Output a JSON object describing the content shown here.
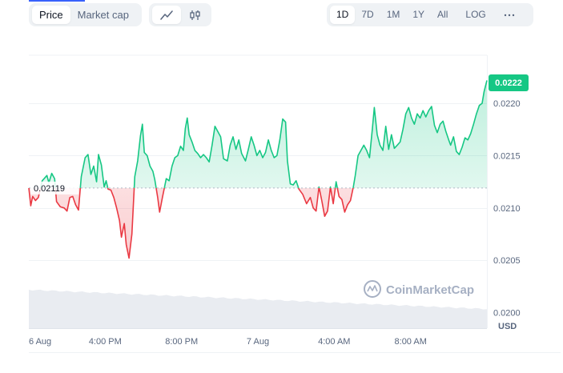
{
  "toolbar": {
    "metric_tabs": [
      {
        "label": "Price",
        "active": true
      },
      {
        "label": "Market cap",
        "active": false
      }
    ],
    "chart_type": {
      "line_icon": "line-chart-icon",
      "candle_icon": "candlestick-icon",
      "active": "line"
    },
    "ranges": [
      {
        "label": "1D",
        "active": true
      },
      {
        "label": "7D",
        "active": false
      },
      {
        "label": "1M",
        "active": false
      },
      {
        "label": "1Y",
        "active": false
      },
      {
        "label": "All",
        "active": false
      },
      {
        "label": "LOG",
        "active": false
      }
    ],
    "more_icon": "more-horizontal-icon"
  },
  "watermark": {
    "text": "CoinMarketCap",
    "icon": "coinmarketcap-logo-icon"
  },
  "colors": {
    "up": "#16c784",
    "down": "#ea3943",
    "badge": "#16c784",
    "reference_line": "#b0b8c5",
    "volume": "#e9ecf1"
  },
  "chart_data": {
    "type": "line",
    "currency_label": "USD",
    "reference_price": 0.02119,
    "reference_label": "0.02119",
    "current_price": 0.0222,
    "current_label": "0.0222",
    "ylim": [
      0.01985,
      0.02246
    ],
    "y_ticks": [
      {
        "value": 0.022,
        "label": "0.0220"
      },
      {
        "value": 0.0215,
        "label": "0.0215"
      },
      {
        "value": 0.021,
        "label": "0.0210"
      },
      {
        "value": 0.0205,
        "label": "0.0205"
      },
      {
        "value": 0.02,
        "label": "0.0200"
      }
    ],
    "x_unit": "hours since 12:00 PM 6 Aug",
    "xlim": [
      0,
      24
    ],
    "x_ticks": [
      {
        "value": 0,
        "label": "6 Aug"
      },
      {
        "value": 4,
        "label": "4:00 PM"
      },
      {
        "value": 8,
        "label": "8:00 PM"
      },
      {
        "value": 12,
        "label": "7 Aug"
      },
      {
        "value": 16,
        "label": "4:00 AM"
      },
      {
        "value": 20,
        "label": "8:00 AM"
      }
    ],
    "points": [
      [
        0.0,
        0.02119
      ],
      [
        0.1,
        0.02102
      ],
      [
        0.2,
        0.02111
      ],
      [
        0.35,
        0.02107
      ],
      [
        0.5,
        0.0211
      ],
      [
        0.7,
        0.02126
      ],
      [
        0.8,
        0.02128
      ],
      [
        0.95,
        0.02131
      ],
      [
        1.05,
        0.02124
      ],
      [
        1.2,
        0.02133
      ],
      [
        1.35,
        0.02128
      ],
      [
        1.45,
        0.02106
      ],
      [
        1.65,
        0.02101
      ],
      [
        1.85,
        0.021
      ],
      [
        2.0,
        0.02097
      ],
      [
        2.15,
        0.0211
      ],
      [
        2.3,
        0.02111
      ],
      [
        2.45,
        0.02103
      ],
      [
        2.6,
        0.02098
      ],
      [
        2.75,
        0.0213
      ],
      [
        2.95,
        0.02148
      ],
      [
        3.1,
        0.02151
      ],
      [
        3.25,
        0.02132
      ],
      [
        3.4,
        0.0214
      ],
      [
        3.55,
        0.02125
      ],
      [
        3.65,
        0.02151
      ],
      [
        3.8,
        0.02141
      ],
      [
        3.95,
        0.0212
      ],
      [
        4.05,
        0.02126
      ],
      [
        4.15,
        0.02118
      ],
      [
        4.3,
        0.02117
      ],
      [
        4.45,
        0.0211
      ],
      [
        4.6,
        0.021
      ],
      [
        4.75,
        0.02088
      ],
      [
        4.85,
        0.02072
      ],
      [
        5.0,
        0.02085
      ],
      [
        5.1,
        0.02065
      ],
      [
        5.25,
        0.02052
      ],
      [
        5.4,
        0.02075
      ],
      [
        5.55,
        0.0213
      ],
      [
        5.7,
        0.02145
      ],
      [
        5.85,
        0.02169
      ],
      [
        5.95,
        0.0218
      ],
      [
        6.05,
        0.02153
      ],
      [
        6.2,
        0.0215
      ],
      [
        6.35,
        0.0214
      ],
      [
        6.5,
        0.02135
      ],
      [
        6.6,
        0.02127
      ],
      [
        6.75,
        0.0211
      ],
      [
        6.85,
        0.02096
      ],
      [
        7.0,
        0.0211
      ],
      [
        7.2,
        0.02128
      ],
      [
        7.35,
        0.02126
      ],
      [
        7.5,
        0.0214
      ],
      [
        7.65,
        0.02148
      ],
      [
        7.8,
        0.0215
      ],
      [
        7.95,
        0.02159
      ],
      [
        8.1,
        0.02155
      ],
      [
        8.2,
        0.02176
      ],
      [
        8.3,
        0.02186
      ],
      [
        8.4,
        0.0217
      ],
      [
        8.55,
        0.02163
      ],
      [
        8.7,
        0.02155
      ],
      [
        8.85,
        0.02152
      ],
      [
        9.0,
        0.02148
      ],
      [
        9.15,
        0.02151
      ],
      [
        9.3,
        0.02148
      ],
      [
        9.45,
        0.02144
      ],
      [
        9.6,
        0.0216
      ],
      [
        9.75,
        0.02178
      ],
      [
        9.9,
        0.02173
      ],
      [
        10.05,
        0.02168
      ],
      [
        10.2,
        0.02147
      ],
      [
        10.4,
        0.02145
      ],
      [
        10.55,
        0.0216
      ],
      [
        10.7,
        0.02168
      ],
      [
        10.85,
        0.02156
      ],
      [
        11.0,
        0.02165
      ],
      [
        11.15,
        0.02152
      ],
      [
        11.35,
        0.02145
      ],
      [
        11.5,
        0.02156
      ],
      [
        11.65,
        0.02168
      ],
      [
        11.8,
        0.0216
      ],
      [
        11.95,
        0.0215
      ],
      [
        12.1,
        0.02155
      ],
      [
        12.25,
        0.02148
      ],
      [
        12.4,
        0.02153
      ],
      [
        12.55,
        0.02165
      ],
      [
        12.7,
        0.02155
      ],
      [
        12.85,
        0.02148
      ],
      [
        13.0,
        0.0215
      ],
      [
        13.15,
        0.02165
      ],
      [
        13.3,
        0.02185
      ],
      [
        13.45,
        0.02182
      ],
      [
        13.55,
        0.02145
      ],
      [
        13.7,
        0.02123
      ],
      [
        13.85,
        0.02122
      ],
      [
        14.0,
        0.02126
      ],
      [
        14.15,
        0.02118
      ],
      [
        14.35,
        0.02113
      ],
      [
        14.55,
        0.02104
      ],
      [
        14.75,
        0.0211
      ],
      [
        14.9,
        0.021
      ],
      [
        15.05,
        0.02097
      ],
      [
        15.2,
        0.0212
      ],
      [
        15.35,
        0.02107
      ],
      [
        15.5,
        0.02092
      ],
      [
        15.65,
        0.02097
      ],
      [
        15.8,
        0.0212
      ],
      [
        15.95,
        0.02104
      ],
      [
        16.1,
        0.02125
      ],
      [
        16.25,
        0.02111
      ],
      [
        16.4,
        0.02108
      ],
      [
        16.55,
        0.02096
      ],
      [
        16.7,
        0.02103
      ],
      [
        16.85,
        0.02107
      ],
      [
        17.0,
        0.0212
      ],
      [
        17.1,
        0.02131
      ],
      [
        17.25,
        0.0215
      ],
      [
        17.4,
        0.02155
      ],
      [
        17.55,
        0.0216
      ],
      [
        17.7,
        0.02155
      ],
      [
        17.85,
        0.02148
      ],
      [
        18.0,
        0.02176
      ],
      [
        18.1,
        0.02196
      ],
      [
        18.25,
        0.0217
      ],
      [
        18.4,
        0.0216
      ],
      [
        18.55,
        0.02155
      ],
      [
        18.7,
        0.02178
      ],
      [
        18.85,
        0.02156
      ],
      [
        19.0,
        0.0217
      ],
      [
        19.15,
        0.02157
      ],
      [
        19.3,
        0.0216
      ],
      [
        19.45,
        0.02163
      ],
      [
        19.6,
        0.02175
      ],
      [
        19.75,
        0.0219
      ],
      [
        19.9,
        0.02196
      ],
      [
        20.05,
        0.02186
      ],
      [
        20.2,
        0.0218
      ],
      [
        20.35,
        0.0219
      ],
      [
        20.5,
        0.02186
      ],
      [
        20.65,
        0.02193
      ],
      [
        20.8,
        0.02187
      ],
      [
        20.95,
        0.02193
      ],
      [
        21.1,
        0.02197
      ],
      [
        21.25,
        0.02179
      ],
      [
        21.4,
        0.02172
      ],
      [
        21.55,
        0.0218
      ],
      [
        21.7,
        0.02183
      ],
      [
        21.85,
        0.02173
      ],
      [
        22.0,
        0.02165
      ],
      [
        22.1,
        0.0216
      ],
      [
        22.25,
        0.02168
      ],
      [
        22.4,
        0.02154
      ],
      [
        22.55,
        0.02151
      ],
      [
        22.7,
        0.02158
      ],
      [
        22.85,
        0.02167
      ],
      [
        23.0,
        0.02165
      ],
      [
        23.15,
        0.02171
      ],
      [
        23.3,
        0.0218
      ],
      [
        23.45,
        0.0219
      ],
      [
        23.6,
        0.02198
      ],
      [
        23.75,
        0.022
      ],
      [
        23.85,
        0.02211
      ],
      [
        24.0,
        0.02222
      ]
    ]
  }
}
